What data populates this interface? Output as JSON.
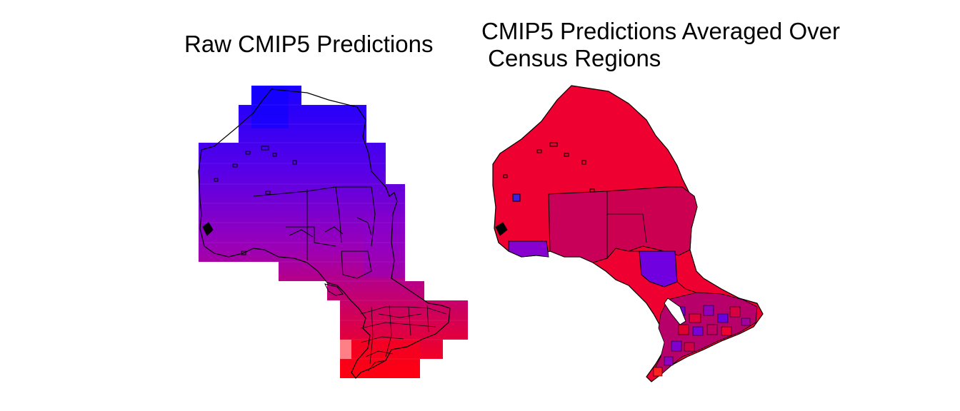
{
  "panels": [
    {
      "title": "Raw CMIP5 Predictions",
      "map_style": "gridded-raster"
    },
    {
      "title_line1": "CMIP5 Predictions Averaged Over",
      "title_line2": " Census Regions",
      "map_style": "census-region-averages"
    }
  ],
  "colors": {
    "north_blue": "#1a00ff",
    "mid_purple": "#7a00d8",
    "magenta": "#c8005a",
    "south_red": "#ff0010",
    "region_red": "#ee0030",
    "region_purple": "#7000e0",
    "outline": "#000000",
    "water": "#ffffff"
  }
}
